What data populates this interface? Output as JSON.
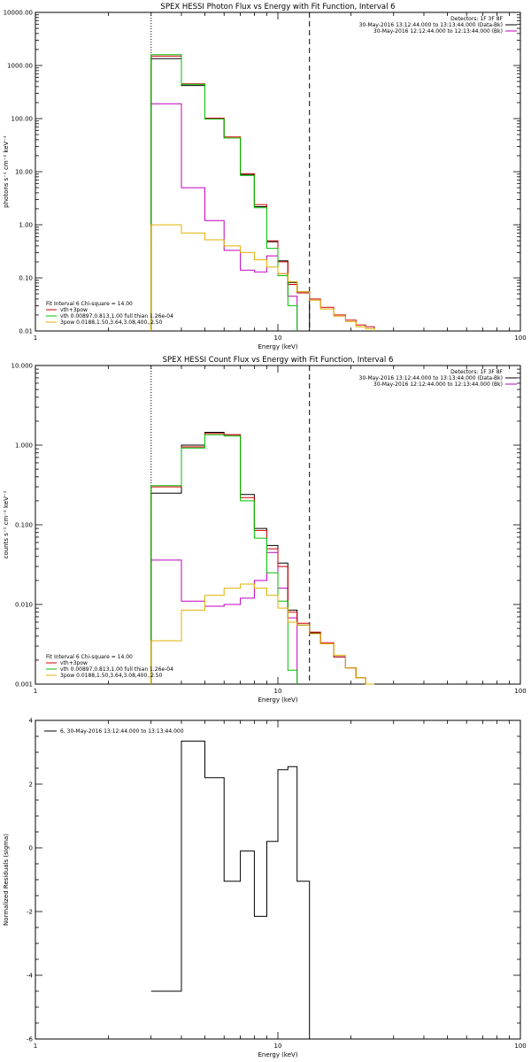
{
  "chart_data": [
    {
      "type": "line",
      "title": "SPEX HESSI Photon Flux vs Energy with Fit Function, Interval 6",
      "xlabel": "Energy (keV)",
      "ylabel": "photons s⁻¹ cm⁻² keV⁻¹",
      "x_scale": "log",
      "y_scale": "log",
      "xlim": [
        1,
        100
      ],
      "ylim": [
        0.01,
        10000
      ],
      "xticks": [
        "1",
        "10",
        "100"
      ],
      "yticks": [
        "0.01",
        "0.10",
        "1.00",
        "10.00",
        "100.00",
        "1000.00",
        "10000.00"
      ],
      "vlines": [
        {
          "x": 3.0,
          "style": "dotted"
        },
        {
          "x": 13.5,
          "style": "dashed"
        }
      ],
      "bin_edges": [
        3,
        4,
        5,
        6,
        7,
        8,
        9,
        10,
        11,
        12,
        13.5,
        15,
        17,
        19,
        21,
        23,
        25
      ],
      "legend_right": {
        "header": "Detectors: 1F 3F 8F",
        "entries": [
          {
            "label": "30-May-2016 13:12:44.000 to 13:13:44.000 (Data-Bk)",
            "color": "#000000"
          },
          {
            "label": "30-May-2016 12:12:44.000 to 12:13:44.000 (Bk)",
            "color": "#c000c0"
          }
        ]
      },
      "legend_left": {
        "header": "Fit Interval  6    Chi-square = 14.00",
        "entries": [
          {
            "label": "vth+3pow",
            "color": "#d00000"
          },
          {
            "label": "vth 0.00897,0.813,1.00  full thian 1.26e-04",
            "color": "#00c000"
          },
          {
            "label": "3pow 0.0188,1.50,3.64,3.08,400.,2.50",
            "color": "#e0b000"
          }
        ]
      },
      "series": [
        {
          "name": "30-May-2016 13:12:44.000 to 13:13:44.000 (Data-Bk)",
          "color": "#000000",
          "values": [
            1350,
            420,
            100,
            43,
            8.8,
            2.2,
            0.48,
            0.21,
            0.082,
            0.055,
            null,
            null,
            null,
            null,
            null,
            null
          ]
        },
        {
          "name": "30-May-2016 12:12:44.000 to 12:13:44.000 (Bk)",
          "color": "#c000c0",
          "values": [
            190,
            5.0,
            1.2,
            0.33,
            0.14,
            0.13,
            0.26,
            0.12,
            0.045,
            null,
            null,
            null,
            null,
            null,
            null,
            null
          ]
        },
        {
          "name": "vth+3pow",
          "color": "#d00000",
          "values": [
            1500,
            450,
            102,
            45,
            9.2,
            2.4,
            0.5,
            0.2,
            0.075,
            0.052,
            0.04,
            0.028,
            0.02,
            0.016,
            0.013,
            0.012
          ]
        },
        {
          "name": "vth 0.00897,0.813,1.00  full thian 1.26e-04",
          "color": "#00c000",
          "values": [
            1600,
            440,
            98,
            43,
            8.5,
            2.1,
            0.36,
            0.11,
            0.03,
            null,
            null,
            null,
            null,
            null,
            null,
            null
          ]
        },
        {
          "name": "3pow 0.0188,1.50,3.64,3.08,400.,2.50",
          "color": "#e0b000",
          "values": [
            1.0,
            0.7,
            0.52,
            0.4,
            0.3,
            0.22,
            0.16,
            0.12,
            0.085,
            0.055,
            0.038,
            0.026,
            0.019,
            0.015,
            0.012,
            0.011
          ]
        }
      ]
    },
    {
      "type": "line",
      "title": "SPEX HESSI Count Flux vs Energy with Fit Function, Interval 6",
      "xlabel": "Energy (keV)",
      "ylabel": "counts s⁻¹ cm⁻² keV⁻¹",
      "x_scale": "log",
      "y_scale": "log",
      "xlim": [
        1,
        100
      ],
      "ylim": [
        0.001,
        10
      ],
      "xticks": [
        "1",
        "10",
        "100"
      ],
      "yticks": [
        "0.001",
        "0.010",
        "0.100",
        "1.000",
        "10.000"
      ],
      "vlines": [
        {
          "x": 3.0,
          "style": "dotted"
        },
        {
          "x": 13.5,
          "style": "dashed"
        }
      ],
      "bin_edges": [
        3,
        4,
        5,
        6,
        7,
        8,
        9,
        10,
        11,
        12,
        13.5,
        15,
        17,
        19,
        21,
        23,
        25
      ],
      "legend_right": {
        "header": "Detectors: 1F 3F 8F",
        "entries": [
          {
            "label": "30-May-2016 13:12:44.000 to 13:13:44.000 (Data-Bk)",
            "color": "#000000"
          },
          {
            "label": "30-May-2016 12:12:44.000 to 12:13:44.000 (Bk)",
            "color": "#c000c0"
          }
        ]
      },
      "legend_left": {
        "header": "Fit Interval  6    Chi-square = 14.00",
        "entries": [
          {
            "label": "vth+3pow",
            "color": "#d00000"
          },
          {
            "label": "vth 0.00897,0.813,1.00  full thian 1.26e-04",
            "color": "#00c000"
          },
          {
            "label": "3pow 0.0188,1.50,3.64,3.08,400.,2.50",
            "color": "#e0b000"
          }
        ]
      },
      "series": [
        {
          "name": "30-May-2016 13:12:44.000 to 13:13:44.000 (Data-Bk)",
          "color": "#000000",
          "values": [
            0.25,
            1.0,
            1.45,
            1.35,
            0.24,
            0.09,
            0.055,
            0.033,
            0.0085,
            0.0055,
            0.0044,
            0.0032,
            0.0022,
            0.0016,
            0.0012,
            null
          ]
        },
        {
          "name": "30-May-2016 12:12:44.000 to 12:13:44.000 (Bk)",
          "color": "#c000c0",
          "values": [
            0.036,
            0.011,
            0.0095,
            0.01,
            0.012,
            0.02,
            0.045,
            0.016,
            0.0068,
            null,
            null,
            null,
            null,
            null,
            null,
            null
          ]
        },
        {
          "name": "vth+3pow",
          "color": "#d00000",
          "values": [
            0.3,
            0.95,
            1.4,
            1.35,
            0.22,
            0.085,
            0.05,
            0.03,
            0.008,
            0.0058,
            0.0045,
            0.0033,
            0.0022,
            0.0016,
            0.0012,
            0.001
          ]
        },
        {
          "name": "vth 0.00897,0.813,1.00  full thian 1.26e-04",
          "color": "#00c000",
          "values": [
            0.31,
            0.92,
            1.35,
            1.3,
            0.2,
            0.068,
            0.025,
            0.011,
            0.0015,
            null,
            null,
            null,
            null,
            null,
            null,
            null
          ]
        },
        {
          "name": "3pow 0.0188,1.50,3.64,3.08,400.,2.50",
          "color": "#e0b000",
          "values": [
            0.0035,
            0.0085,
            0.013,
            0.016,
            0.018,
            0.016,
            0.013,
            0.009,
            0.006,
            0.0055,
            0.0043,
            0.0032,
            0.0023,
            0.0016,
            0.0012,
            0.001
          ]
        }
      ]
    },
    {
      "type": "line",
      "title": "",
      "xlabel": "Energy (keV)",
      "ylabel": "Normalized Residuals (sigma)",
      "x_scale": "log",
      "y_scale": "linear",
      "xlim": [
        1,
        100
      ],
      "ylim": [
        -6,
        4
      ],
      "xticks": [
        "1",
        "10",
        "100"
      ],
      "yticks": [
        "-6",
        "-4",
        "-2",
        "0",
        "2",
        "4"
      ],
      "bin_edges": [
        3,
        4,
        5,
        6,
        7,
        8,
        9,
        10,
        11,
        12,
        13.5
      ],
      "legend_left": {
        "header": "",
        "entries": [
          {
            "label": "6, 30-May-2016 13:12:44.000 to 13:13:44.000",
            "color": "#000000"
          }
        ]
      },
      "series": [
        {
          "name": "6, 30-May-2016 13:12:44.000 to 13:13:44.000",
          "color": "#000000",
          "values": [
            -4.5,
            3.35,
            2.2,
            -1.05,
            -0.1,
            -2.15,
            0.2,
            2.45,
            2.55,
            -1.05
          ]
        }
      ]
    }
  ]
}
